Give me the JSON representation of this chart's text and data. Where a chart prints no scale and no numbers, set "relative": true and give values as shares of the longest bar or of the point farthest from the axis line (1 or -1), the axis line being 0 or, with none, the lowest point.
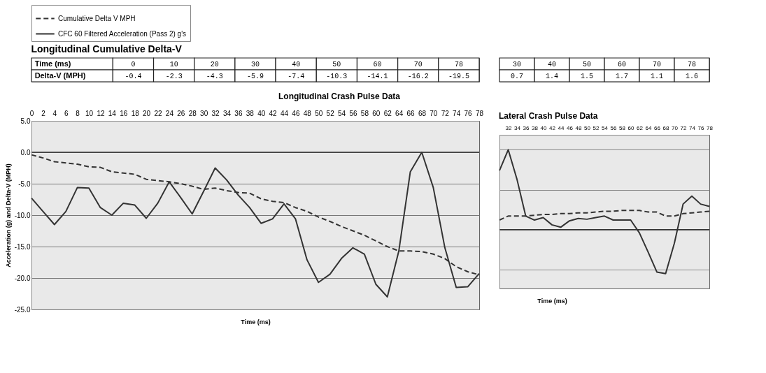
{
  "chart_data": [
    {
      "type": "line",
      "title": "Longitudinal Crash Pulse Data",
      "xlabel": "Time (ms)",
      "ylabel": "Acceleration (g) and Delta-V (MPH)",
      "annotations": [
        "Longitudinal Cumulative Delta-V",
        "Time (ms)",
        "0",
        "10",
        "20",
        "30",
        "40",
        "50",
        "60",
        "70",
        "78",
        "Delta-V (MPH)",
        "-0.4",
        "-2.3",
        "-4.3",
        "-5.9",
        "-7.4",
        "-10.3",
        "-14.1",
        "-16.2",
        "-19.5"
      ],
      "x": [
        0,
        2,
        4,
        6,
        8,
        10,
        12,
        14,
        16,
        18,
        20,
        22,
        24,
        26,
        28,
        30,
        32,
        34,
        36,
        38,
        40,
        42,
        44,
        46,
        48,
        50,
        52,
        54,
        56,
        58,
        60,
        62,
        64,
        66,
        68,
        70,
        72,
        74,
        76,
        78
      ],
      "series": [
        {
          "name": "Cumulative Delta V MPH",
          "color": "#333333",
          "line_style": "dashed",
          "values": [
            -0.4,
            -0.9,
            -1.5,
            -1.7,
            -1.9,
            -2.3,
            -2.4,
            -3.1,
            -3.3,
            -3.5,
            -4.3,
            -4.5,
            -4.7,
            -5.0,
            -5.4,
            -5.9,
            -5.7,
            -6.1,
            -6.4,
            -6.5,
            -7.4,
            -7.8,
            -8.0,
            -8.8,
            -9.4,
            -10.3,
            -11.0,
            -11.8,
            -12.5,
            -13.2,
            -14.1,
            -15.0,
            -15.7,
            -15.7,
            -15.8,
            -16.2,
            -16.9,
            -18.2,
            -19.0,
            -19.5
          ]
        },
        {
          "name": "CFC 60 Filtered Acceleration (Pass 2) g's",
          "color": "#333333",
          "line_style": "solid",
          "values": [
            -7.3,
            -9.4,
            -11.5,
            -9.4,
            -5.6,
            -5.7,
            -8.8,
            -10.0,
            -8.1,
            -8.4,
            -10.5,
            -8.1,
            -4.7,
            -7.2,
            -9.8,
            -6.2,
            -2.5,
            -4.4,
            -6.8,
            -8.8,
            -11.3,
            -10.6,
            -8.2,
            -10.6,
            -17.1,
            -20.7,
            -19.4,
            -16.9,
            -15.2,
            -16.2,
            -21.0,
            -23.0,
            -15.7,
            -3.1,
            0.0,
            -5.6,
            -15.1,
            -21.5,
            -21.4,
            -19.3
          ]
        }
      ],
      "xlim": [
        0,
        78
      ],
      "xticks": [
        0,
        2,
        4,
        6,
        8,
        10,
        12,
        14,
        16,
        18,
        20,
        22,
        24,
        26,
        28,
        30,
        32,
        34,
        36,
        38,
        40,
        42,
        44,
        46,
        48,
        50,
        52,
        54,
        56,
        58,
        60,
        62,
        64,
        66,
        68,
        70,
        72,
        74,
        76,
        78
      ],
      "ylim": [
        -25,
        5
      ],
      "yticks": [
        {
          "value": 5,
          "label": "5.0"
        },
        {
          "value": 0,
          "label": "0.0"
        },
        {
          "value": -5,
          "label": "-5.0"
        },
        {
          "value": -10,
          "label": "-10.0"
        },
        {
          "value": -15,
          "label": "-15.0"
        },
        {
          "value": -20,
          "label": "-20.0"
        },
        {
          "value": -25,
          "label": "-25.0"
        }
      ],
      "grid": "y",
      "legend": "top left",
      "marker": "none",
      "ref_lines": [
        {
          "axis": "y",
          "value": 0
        }
      ]
    },
    {
      "type": "line",
      "title": "Lateral Crash Pulse Data",
      "xlabel": "Time (ms)",
      "relative": true,
      "tick_labels": "x",
      "annotations": [
        "30",
        "40",
        "50",
        "60",
        "70",
        "78",
        "0.7",
        "1.4",
        "1.5",
        "1.7",
        "1.1",
        "1.6"
      ],
      "x": [
        30,
        32,
        34,
        36,
        38,
        40,
        42,
        44,
        46,
        48,
        50,
        52,
        54,
        56,
        58,
        60,
        62,
        64,
        66,
        68,
        70,
        72,
        74,
        76,
        78
      ],
      "series": [
        {
          "color": "#333333",
          "line_style": "dashed",
          "values": [
            0.12,
            0.17,
            0.17,
            0.17,
            0.18,
            0.19,
            0.19,
            0.2,
            0.2,
            0.21,
            0.21,
            0.22,
            0.23,
            0.23,
            0.24,
            0.24,
            0.24,
            0.22,
            0.22,
            0.17,
            0.17,
            0.2,
            0.21,
            0.22,
            0.23
          ]
        },
        {
          "color": "#333333",
          "line_style": "solid",
          "values": [
            0.74,
            1.0,
            0.63,
            0.17,
            0.12,
            0.15,
            0.06,
            0.03,
            0.11,
            0.14,
            0.13,
            0.15,
            0.17,
            0.12,
            0.12,
            0.12,
            -0.04,
            -0.28,
            -0.53,
            -0.55,
            -0.17,
            0.32,
            0.42,
            0.32,
            0.29
          ]
        }
      ],
      "xlim": [
        30,
        78
      ],
      "xticks": [
        32,
        34,
        36,
        38,
        40,
        42,
        44,
        46,
        48,
        50,
        52,
        54,
        56,
        58,
        60,
        62,
        64,
        66,
        68,
        70,
        72,
        74,
        76,
        78
      ],
      "grid": "y",
      "legend": false,
      "marker": "none",
      "ref_lines": [
        {
          "axis": "y",
          "value": 0
        }
      ]
    }
  ]
}
